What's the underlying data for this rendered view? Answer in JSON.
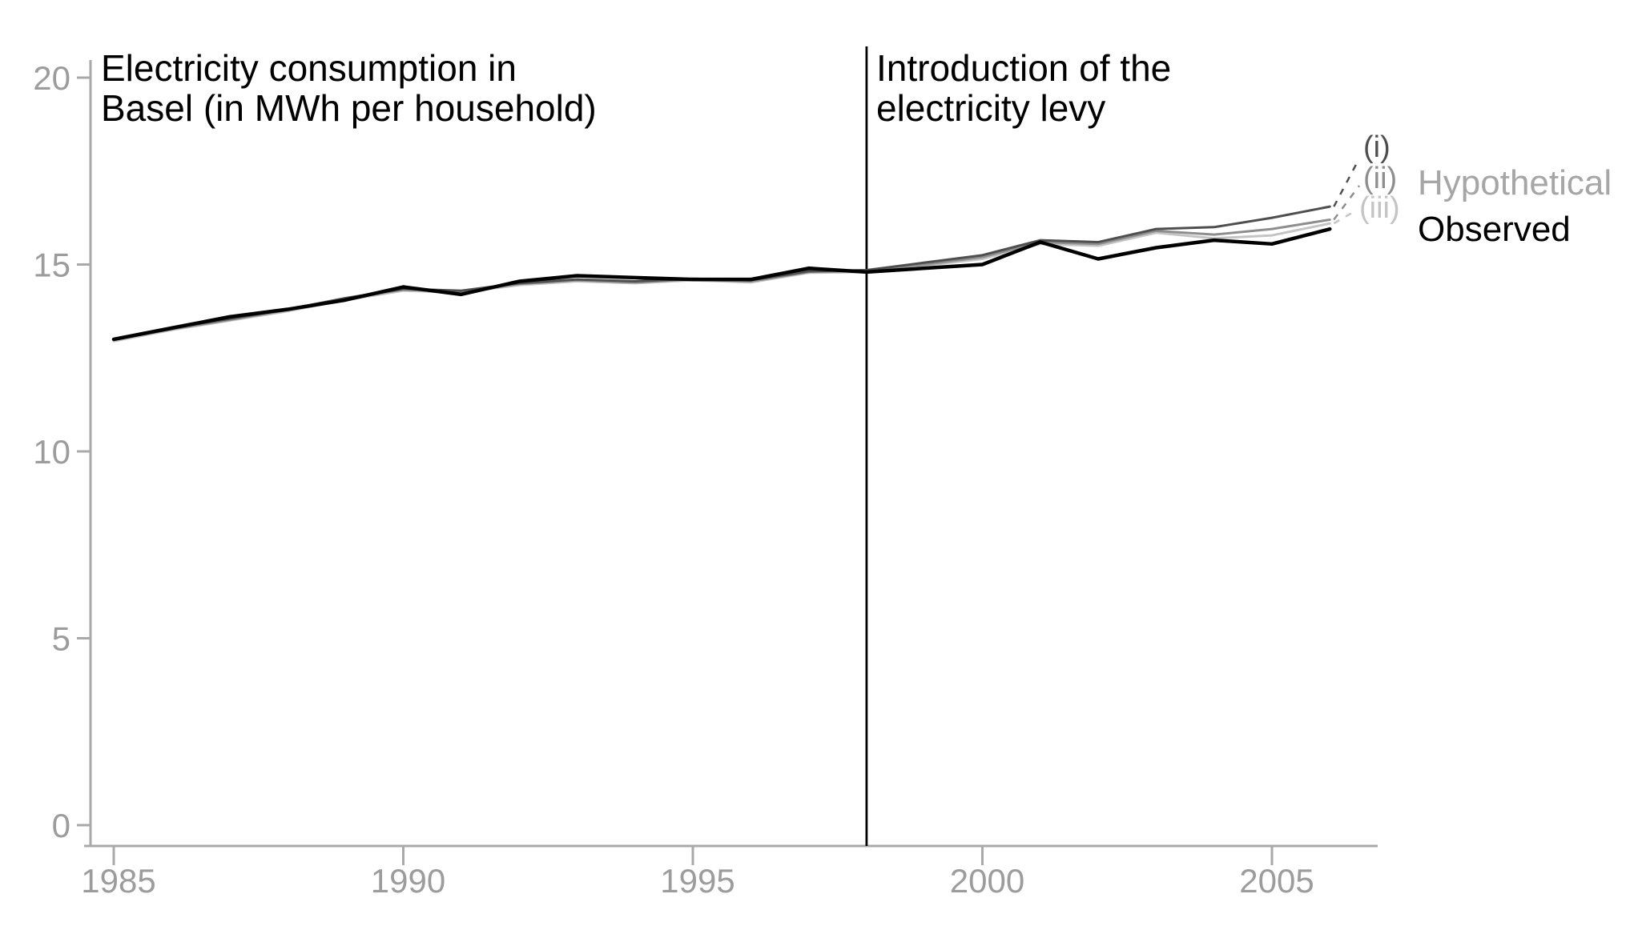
{
  "chart_data": {
    "type": "line",
    "title": "Electricity consumption in Basel (in MWh per household)",
    "annotations": {
      "title": {
        "lines": [
          "Electricity consumption in",
          "Basel (in MWh per household)"
        ]
      },
      "levy": {
        "lines": [
          "Introduction of the",
          "electricity levy"
        ]
      }
    },
    "x": [
      1985,
      1986,
      1987,
      1988,
      1989,
      1990,
      1991,
      1992,
      1993,
      1994,
      1995,
      1996,
      1997,
      1998,
      1999,
      2000,
      2001,
      2002,
      2003,
      2004,
      2005,
      2006
    ],
    "series": [
      {
        "name": "Hypothetical (iii)",
        "label": "(iii)",
        "color": "#c4c4c4",
        "width": 3,
        "values": [
          12.95,
          13.25,
          13.5,
          13.75,
          14.05,
          14.3,
          14.25,
          14.45,
          14.55,
          14.5,
          14.58,
          14.52,
          14.78,
          14.8,
          14.97,
          15.15,
          15.55,
          15.5,
          15.85,
          15.7,
          15.78,
          16.1
        ]
      },
      {
        "name": "Hypothetical (ii)",
        "label": "(ii)",
        "color": "#8e8e8e",
        "width": 3,
        "values": [
          12.98,
          13.27,
          13.52,
          13.78,
          14.07,
          14.33,
          14.27,
          14.48,
          14.58,
          14.52,
          14.6,
          14.55,
          14.8,
          14.83,
          15.0,
          15.2,
          15.6,
          15.55,
          15.9,
          15.8,
          15.95,
          16.2
        ]
      },
      {
        "name": "Hypothetical (i)",
        "label": "(i)",
        "color": "#4f4f4f",
        "width": 3,
        "values": [
          13.0,
          13.3,
          13.55,
          13.8,
          14.1,
          14.35,
          14.3,
          14.5,
          14.6,
          14.55,
          14.62,
          14.58,
          14.82,
          14.85,
          15.05,
          15.25,
          15.65,
          15.6,
          15.95,
          16.0,
          16.25,
          16.55
        ]
      },
      {
        "name": "Observed",
        "label": "Observed",
        "color": "#000000",
        "width": 4.5,
        "values": [
          13.0,
          13.3,
          13.6,
          13.8,
          14.05,
          14.4,
          14.2,
          14.55,
          14.7,
          14.65,
          14.6,
          14.6,
          14.9,
          14.8,
          14.9,
          15.0,
          15.6,
          15.15,
          15.45,
          15.65,
          15.55,
          15.95
        ]
      }
    ],
    "xticks": [
      1985,
      1990,
      1995,
      2000,
      2005
    ],
    "yticks": [
      0,
      5,
      10,
      15,
      20
    ],
    "xlim": [
      1984.5,
      2007
    ],
    "ylim": [
      0,
      20
    ],
    "reference_line": {
      "x": 1998,
      "color": "#000000"
    },
    "legend": {
      "hypothetical": "Hypothetical",
      "observed": "Observed",
      "items": [
        "(i)",
        "(ii)",
        "(iii)"
      ],
      "position": "right-of-line-ends"
    },
    "grid": false,
    "axis_color": "#a9a9a9",
    "tick_label_color": "#9c9c9c"
  }
}
